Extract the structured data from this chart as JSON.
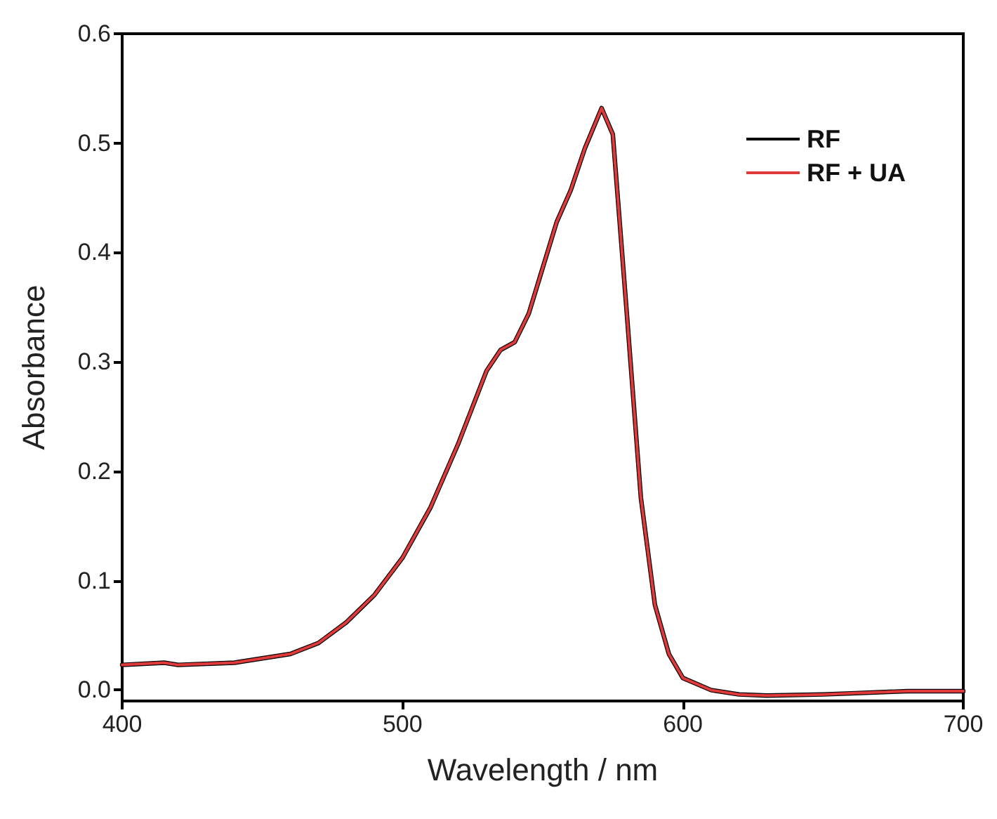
{
  "chart_data": {
    "type": "line",
    "xlabel": "Wavelength / nm",
    "ylabel": "Absorbance",
    "x": [
      400,
      415,
      420,
      440,
      460,
      470,
      480,
      490,
      500,
      510,
      520,
      530,
      535,
      540,
      545,
      550,
      555,
      560,
      565,
      571,
      575,
      580,
      585,
      590,
      595,
      600,
      610,
      620,
      630,
      650,
      660,
      680,
      700
    ],
    "series": [
      {
        "name": "RF",
        "color": "#000000",
        "values": [
          0.023,
          0.025,
          0.023,
          0.025,
          0.033,
          0.043,
          0.062,
          0.087,
          0.121,
          0.167,
          0.226,
          0.292,
          0.311,
          0.318,
          0.344,
          0.386,
          0.428,
          0.457,
          0.495,
          0.532,
          0.508,
          0.344,
          0.176,
          0.078,
          0.033,
          0.011,
          0.0,
          -0.004,
          -0.005,
          -0.004,
          -0.003,
          -0.001,
          -0.001
        ]
      },
      {
        "name": "RF + UA",
        "color": "#e03a3a",
        "values": [
          0.023,
          0.025,
          0.023,
          0.025,
          0.033,
          0.043,
          0.062,
          0.087,
          0.121,
          0.167,
          0.226,
          0.292,
          0.311,
          0.318,
          0.344,
          0.386,
          0.428,
          0.457,
          0.495,
          0.532,
          0.508,
          0.344,
          0.176,
          0.078,
          0.033,
          0.011,
          0.0,
          -0.004,
          -0.005,
          -0.004,
          -0.003,
          -0.001,
          -0.001
        ]
      }
    ],
    "xlim": [
      400,
      700
    ],
    "xticks": [
      400,
      500,
      600,
      700
    ],
    "ylim": [
      -0.01,
      0.6
    ],
    "yticks": [
      {
        "value": 0,
        "label": "0.0"
      },
      {
        "value": 0.1,
        "label": "0.1"
      },
      {
        "value": 0.2,
        "label": "0.2"
      },
      {
        "value": 0.3,
        "label": "0.3"
      },
      {
        "value": 0.4,
        "label": "0.4"
      },
      {
        "value": 0.5,
        "label": "0.5"
      },
      {
        "value": 0.6,
        "label": "0.6"
      }
    ],
    "grid": false,
    "legend": "top right",
    "marker": "none",
    "line_style": "solid"
  }
}
